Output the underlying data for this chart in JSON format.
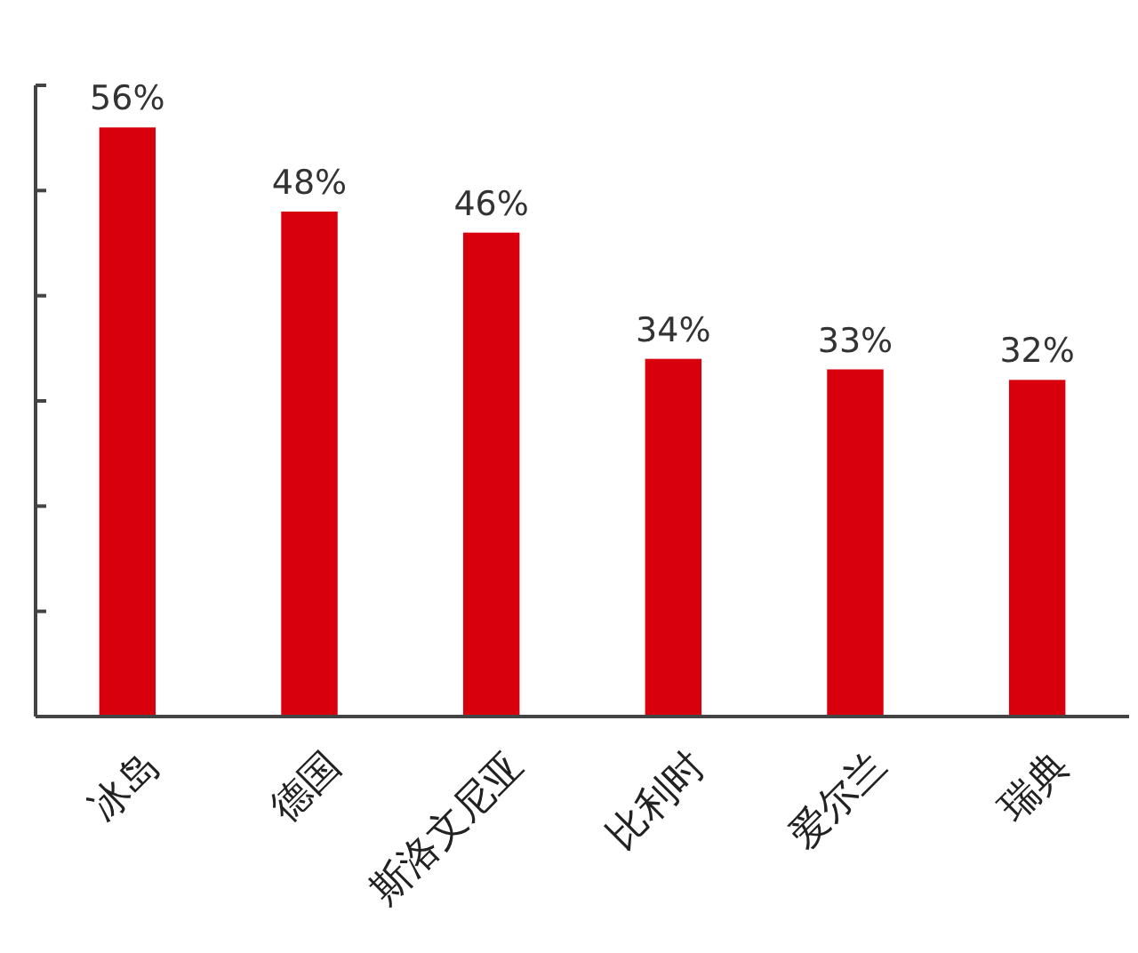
{
  "chart_data": {
    "type": "bar",
    "categories": [
      "冰岛",
      "德国",
      "斯洛文尼亚",
      "比利时",
      "爱尔兰",
      "瑞典"
    ],
    "values": [
      56,
      48,
      46,
      34,
      33,
      32
    ],
    "value_labels": [
      "56%",
      "48%",
      "46%",
      "34%",
      "33%",
      "32%"
    ],
    "color": "#d9000d",
    "ylim": [
      0,
      60
    ],
    "yticks": [
      {
        "value": 0,
        "label": null
      },
      {
        "value": 10,
        "label": null
      },
      {
        "value": 20,
        "label": null
      },
      {
        "value": 30,
        "label": null
      },
      {
        "value": 40,
        "label": null
      },
      {
        "value": 50,
        "label": null
      },
      {
        "value": 60,
        "label": null
      }
    ],
    "grid": false
  }
}
